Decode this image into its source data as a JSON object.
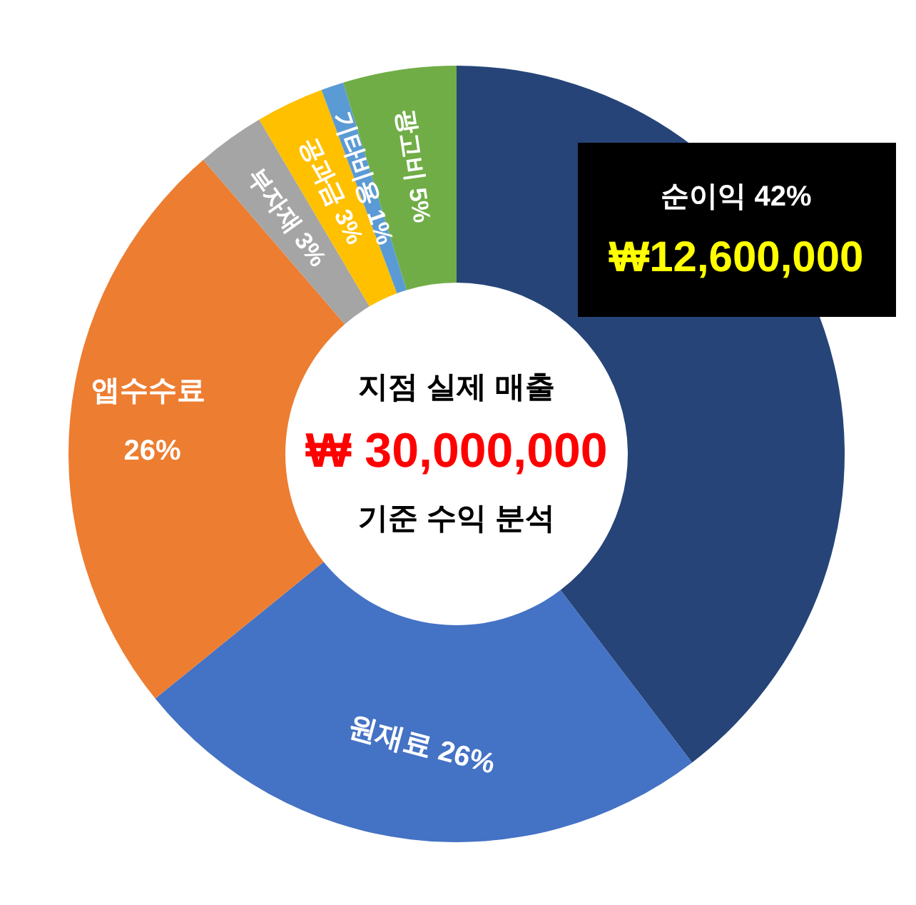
{
  "chart_data": {
    "type": "donut",
    "title": "지점 실제 매출",
    "categories": [
      "순이익",
      "원재료",
      "앱수수료",
      "부자재",
      "공과금",
      "기타비용",
      "광고비"
    ],
    "values": [
      42,
      26,
      26,
      3,
      3,
      1,
      5
    ],
    "value_labels": [
      "42%",
      "26%",
      "26%",
      "3%",
      "3%",
      "1%",
      "5%"
    ],
    "colors": [
      "#264478",
      "#4472c4",
      "#ed7d31",
      "#a5a5a5",
      "#ffc000",
      "#5b9bd5",
      "#70ad47"
    ],
    "annotations": [
      "₩ 30,000,000",
      "기준 수익 분석",
      "₩12,600,000"
    ]
  }
}
